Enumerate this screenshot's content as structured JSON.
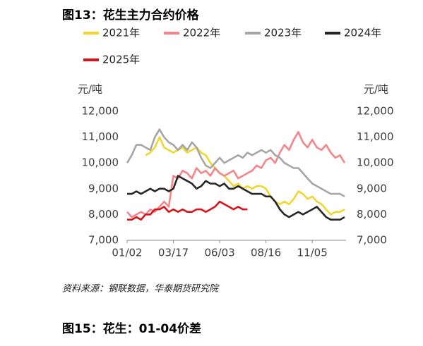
{
  "chart_data": {
    "type": "line",
    "title": "图13：花生主力合约价格",
    "y_label": "元/吨",
    "y2_label": "元/吨",
    "categories": [
      "01/02",
      null,
      null,
      null,
      null,
      null,
      null,
      null,
      null,
      null,
      "03/17",
      null,
      null,
      null,
      null,
      null,
      null,
      null,
      null,
      null,
      "06/03",
      null,
      null,
      null,
      null,
      null,
      null,
      null,
      null,
      null,
      "08/16",
      null,
      null,
      null,
      null,
      null,
      null,
      null,
      null,
      null,
      "11/05",
      null,
      null,
      null,
      null,
      null,
      null,
      null
    ],
    "ylim": [
      7000,
      12000
    ],
    "yticks": [
      {
        "value": 7000,
        "label": "7,000"
      },
      {
        "value": 8000,
        "label": "8,000"
      },
      {
        "value": 9000,
        "label": "9,000"
      },
      {
        "value": 10000,
        "label": "10,000"
      },
      {
        "value": 11000,
        "label": "11,000"
      },
      {
        "value": 12000,
        "label": "12,000"
      }
    ],
    "y2lim": [
      7000,
      12000
    ],
    "y2ticks": [
      {
        "value": 7000,
        "label": "7,000"
      },
      {
        "value": 8000,
        "label": "8,000"
      },
      {
        "value": 9000,
        "label": "9,000"
      },
      {
        "value": 10000,
        "label": "10,000"
      },
      {
        "value": 11000,
        "label": "11,000"
      },
      {
        "value": 12000,
        "label": "12,000"
      }
    ],
    "series": [
      {
        "name": "2021年",
        "color": "#f2d630",
        "values": [
          null,
          null,
          null,
          null,
          10300,
          10400,
          10600,
          11000,
          10600,
          10500,
          10400,
          10500,
          10600,
          10400,
          10500,
          10600,
          10400,
          10300,
          10000,
          9800,
          9600,
          9500,
          9300,
          9100,
          9200,
          9000,
          9100,
          9000,
          9100,
          9100,
          9000,
          8700,
          8500,
          8400,
          8500,
          8400,
          8600,
          8900,
          8800,
          8600,
          8700,
          8500,
          8400,
          8200,
          8000,
          8100,
          8100,
          8200
        ]
      },
      {
        "name": "2022年",
        "color": "#f4868a",
        "values": [
          8100,
          7900,
          8000,
          8100,
          8000,
          8200,
          8100,
          8300,
          8500,
          8300,
          9500,
          9400,
          9700,
          9600,
          9400,
          9800,
          9600,
          9700,
          9500,
          9800,
          9600,
          9500,
          9600,
          9700,
          9400,
          9500,
          9600,
          9700,
          9900,
          9800,
          10100,
          10200,
          10000,
          10400,
          10700,
          10500,
          10900,
          11200,
          10800,
          10600,
          10900,
          10600,
          10500,
          10700,
          10400,
          10200,
          10300,
          10000
        ]
      },
      {
        "name": "2023年",
        "color": "#a6a6a6",
        "values": [
          10000,
          10300,
          10700,
          10700,
          10600,
          10500,
          11000,
          11300,
          11000,
          10800,
          10700,
          10500,
          10700,
          10500,
          10800,
          10600,
          10200,
          9900,
          9800,
          10000,
          10200,
          10000,
          10100,
          10200,
          10300,
          10200,
          10400,
          10300,
          10400,
          10500,
          10400,
          10500,
          10300,
          10200,
          10000,
          9900,
          9800,
          9800,
          9600,
          9400,
          9200,
          9100,
          9000,
          8900,
          8800,
          8800,
          8800,
          8700
        ]
      },
      {
        "name": "2024年",
        "color": "#262626",
        "values": [
          8800,
          8800,
          8900,
          8800,
          8900,
          9000,
          8900,
          9000,
          9000,
          8900,
          9000,
          9500,
          9400,
          9300,
          9200,
          9000,
          9100,
          9300,
          9200,
          9200,
          9100,
          9200,
          9000,
          9000,
          9100,
          9000,
          8900,
          8800,
          8800,
          8800,
          8700,
          8700,
          8500,
          8200,
          8000,
          7900,
          8000,
          8100,
          8000,
          8100,
          8200,
          8300,
          8100,
          7900,
          7800,
          7800,
          7800,
          7900
        ]
      },
      {
        "name": "2025年",
        "color": "#d7141a",
        "values": [
          7800,
          7800,
          7900,
          7800,
          8000,
          8000,
          8200,
          8200,
          8300,
          8100,
          8200,
          8100,
          8200,
          8100,
          8100,
          8200,
          8200,
          8100,
          8200,
          8300,
          8500,
          8400,
          8300,
          8200,
          8300,
          8200,
          8200,
          null,
          null,
          null,
          null,
          null,
          null,
          null,
          null,
          null,
          null,
          null,
          null,
          null,
          null,
          null,
          null,
          null,
          null,
          null,
          null,
          null
        ]
      }
    ],
    "source": "资料来源：钢联数据，华泰期货研究院"
  },
  "next_figure_title": "图15：花生：01-04价差"
}
